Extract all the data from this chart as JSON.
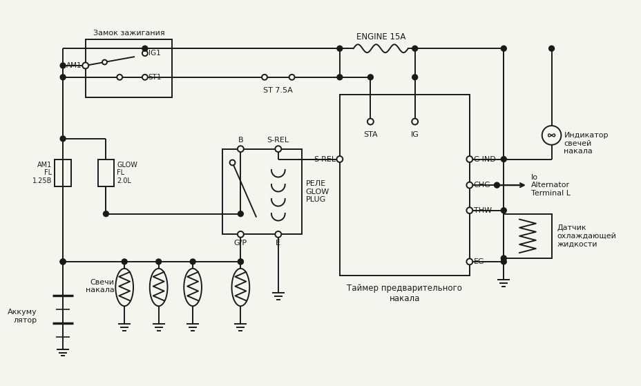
{
  "bg_color": "#f5f5f0",
  "line_color": "#1a1a1a",
  "line_width": 1.4,
  "fig_width": 9.29,
  "fig_height": 5.59,
  "labels": {
    "zamok": "Замок зажигания",
    "am1": "AM1",
    "ig1": "IG1",
    "st1": "ST1",
    "engine15a": "ENGINE 15A",
    "st75a": "ST 7.5A",
    "sta": "STA",
    "ig": "IG",
    "srel_label": "S-REL",
    "gind": "G-IND",
    "chg": "CHG",
    "thw": "THW",
    "eg": "EG",
    "am1_fl": "AM1\nFL\n1.25B",
    "glow_fl": "GLOW\nFL\n2.0L",
    "b_label": "B",
    "srel2": "S-REL",
    "gp": "G/P",
    "e_label": "E",
    "rele_glow": "РЕЛЕ\nGLOW\nPLUG",
    "svech": "Свечи\nнакала",
    "akku": "Аккуму\nлятор",
    "indikator": "Индикатор\nсвечей\nнакала",
    "alternator": "Io\nAlternator\nTerminal L",
    "datchik": "Датчик\nохлаждающей\nжидкости",
    "taymer": "Таймер предварительного\nнакала"
  }
}
